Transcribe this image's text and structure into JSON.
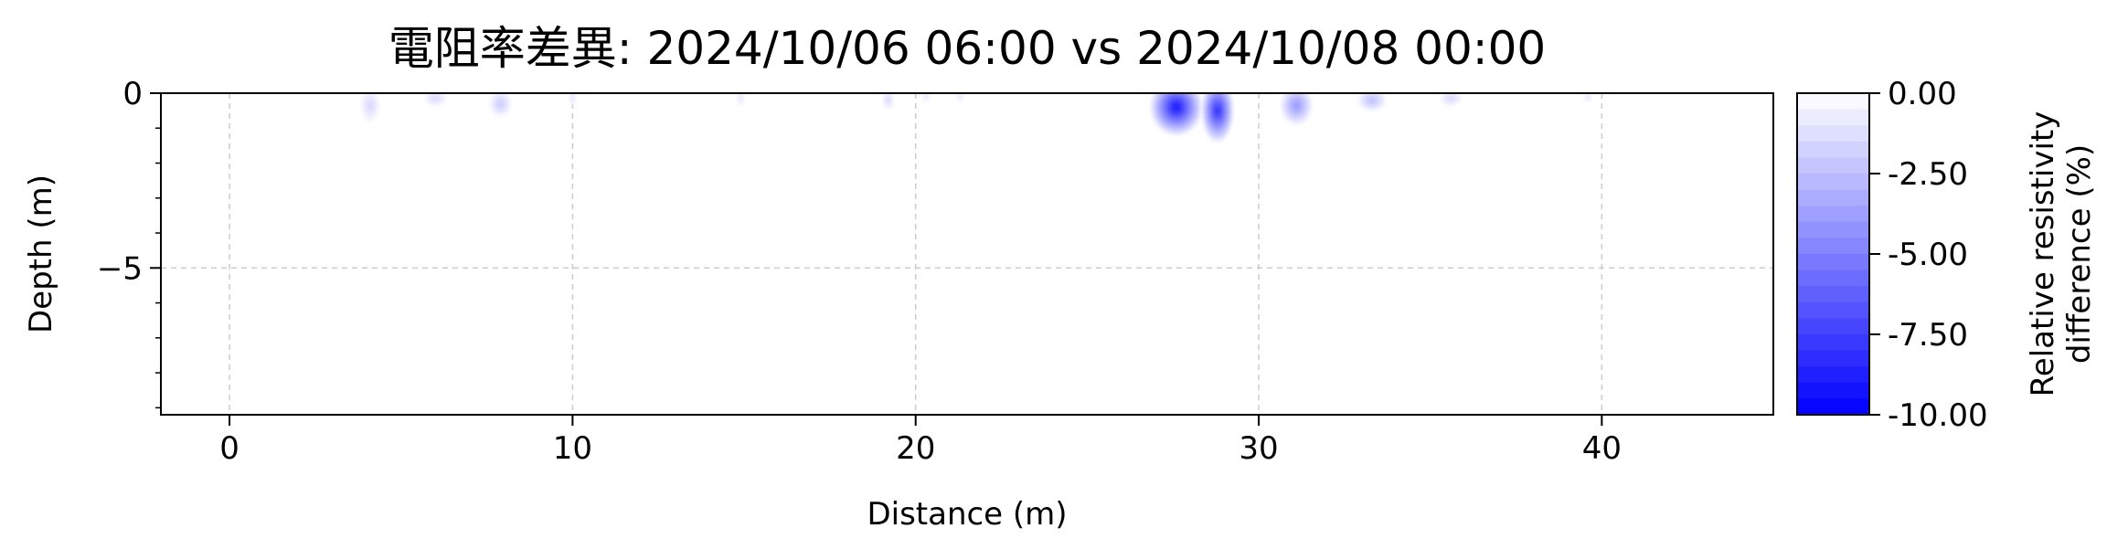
{
  "chart_data": {
    "type": "heatmap",
    "title": "電阻率差異: 2024/10/06 06:00 vs 2024/10/08 00:00",
    "xlabel": "Distance (m)",
    "ylabel": "Depth (m)",
    "xlim": [
      -2,
      45
    ],
    "ylim": [
      -9.2,
      0
    ],
    "x_ticks": [
      0,
      10,
      20,
      30,
      40
    ],
    "y_ticks": [
      0,
      -5
    ],
    "grid": true,
    "colorbar": {
      "label_line1": "Relative resistivity",
      "label_line2": "difference (%)",
      "range": [
        -10,
        0
      ],
      "ticks": [
        0,
        -2.5,
        -5,
        -7.5,
        -10
      ],
      "tick_labels": [
        "0.00",
        "-2.50",
        "-5.00",
        "-7.50",
        "-10.00"
      ],
      "levels": 20,
      "color_low": "#0000ff",
      "color_high": "#ffffff"
    },
    "anomalies": [
      {
        "x": 4.1,
        "depth_center": -0.35,
        "depth_extent": 0.45,
        "width": 0.5,
        "value": -1.5
      },
      {
        "x": 6.0,
        "depth_center": -0.15,
        "depth_extent": 0.2,
        "width": 0.6,
        "value": -1.5
      },
      {
        "x": 7.9,
        "depth_center": -0.3,
        "depth_extent": 0.35,
        "width": 0.6,
        "value": -2.0
      },
      {
        "x": 10.0,
        "depth_center": -0.15,
        "depth_extent": 0.2,
        "width": 0.2,
        "value": -1.0
      },
      {
        "x": 14.9,
        "depth_center": -0.15,
        "depth_extent": 0.2,
        "width": 0.2,
        "value": -1.0
      },
      {
        "x": 19.2,
        "depth_center": -0.2,
        "depth_extent": 0.25,
        "width": 0.3,
        "value": -1.5
      },
      {
        "x": 20.3,
        "depth_center": -0.1,
        "depth_extent": 0.15,
        "width": 0.2,
        "value": -1.0
      },
      {
        "x": 21.3,
        "depth_center": -0.1,
        "depth_extent": 0.15,
        "width": 0.15,
        "value": -1.0
      },
      {
        "x": 27.6,
        "depth_center": -0.4,
        "depth_extent": 0.8,
        "width": 1.5,
        "value": -9.0
      },
      {
        "x": 28.8,
        "depth_center": -0.5,
        "depth_extent": 0.9,
        "width": 0.9,
        "value": -8.0
      },
      {
        "x": 31.1,
        "depth_center": -0.35,
        "depth_extent": 0.55,
        "width": 0.9,
        "value": -4.0
      },
      {
        "x": 33.3,
        "depth_center": -0.2,
        "depth_extent": 0.3,
        "width": 0.8,
        "value": -2.5
      },
      {
        "x": 35.6,
        "depth_center": -0.15,
        "depth_extent": 0.2,
        "width": 0.6,
        "value": -1.5
      },
      {
        "x": 39.6,
        "depth_center": -0.1,
        "depth_extent": 0.15,
        "width": 0.2,
        "value": -1.0
      }
    ]
  }
}
